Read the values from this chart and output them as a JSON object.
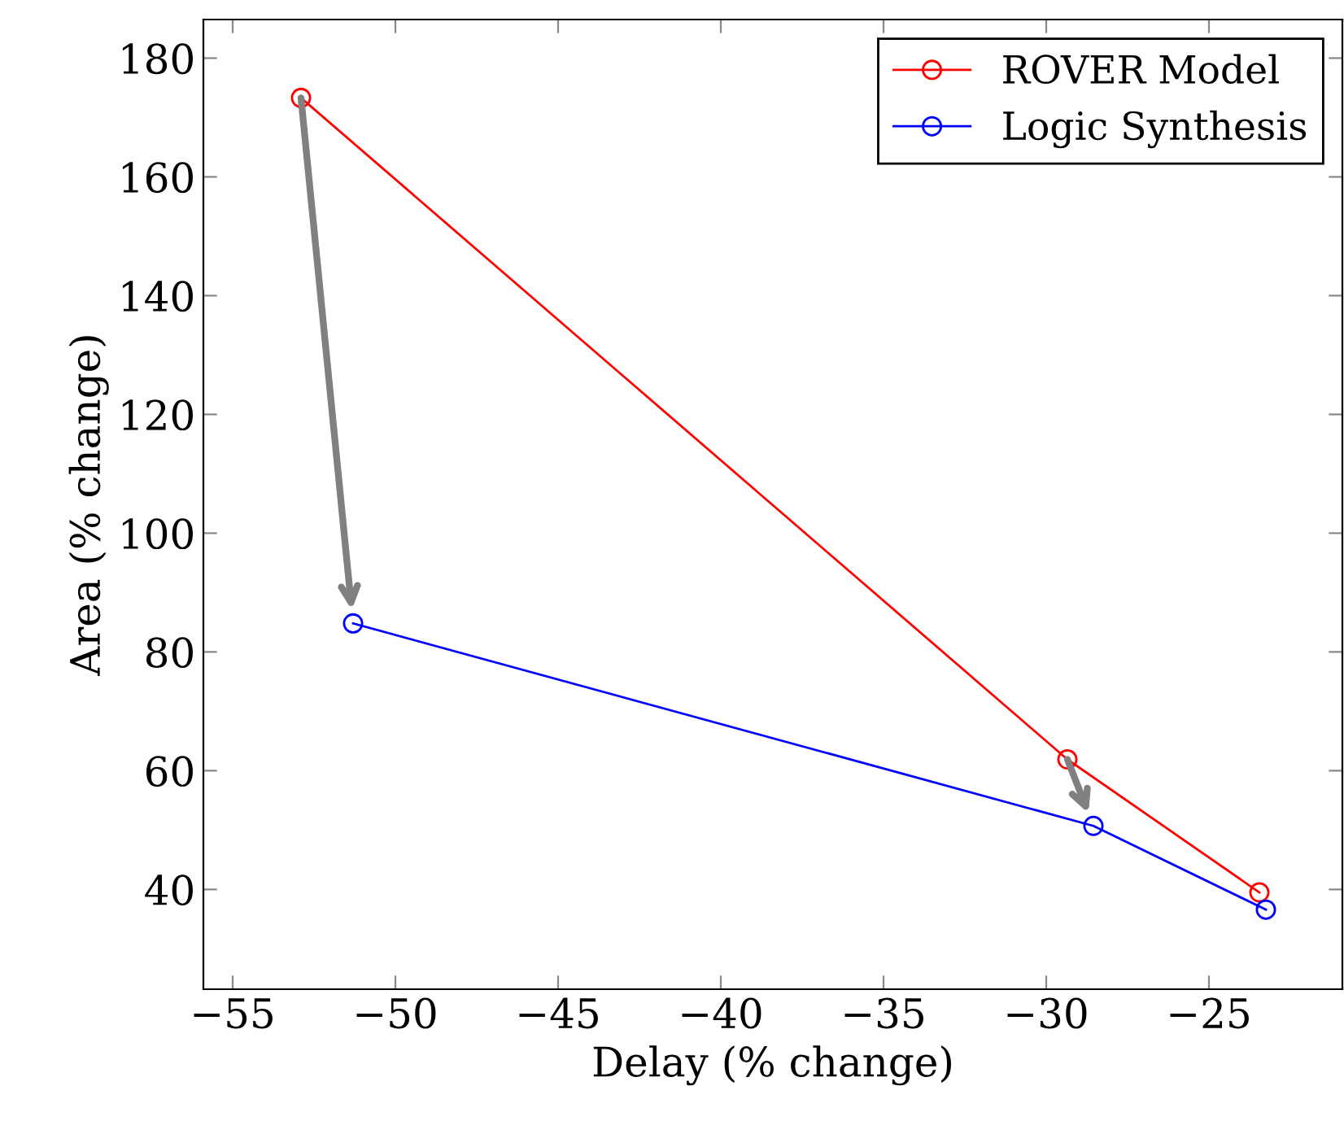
{
  "chart_data": {
    "type": "line",
    "xlabel": "Delay (% change)",
    "ylabel": "Area (% change)",
    "series": [
      {
        "name": "ROVER Model",
        "color": "#ff0000",
        "x": [
          -52.9,
          -29.35,
          -23.45
        ],
        "values": [
          173.3,
          61.9,
          39.5
        ]
      },
      {
        "name": "Logic Synthesis",
        "color": "#0000ff",
        "x": [
          -51.3,
          -28.55,
          -23.25
        ],
        "values": [
          84.8,
          50.7,
          36.6
        ]
      }
    ],
    "xlim": [
      -55.9,
      -20.9
    ],
    "xticks": [
      -55,
      -50,
      -45,
      -40,
      -35,
      -30,
      -25
    ],
    "ylim": [
      23.2,
      186.5
    ],
    "yticks": [
      40,
      60,
      80,
      100,
      120,
      140,
      160,
      180
    ],
    "marker": "circle",
    "line_style": "solid",
    "legend": "top right",
    "grid": false
  }
}
